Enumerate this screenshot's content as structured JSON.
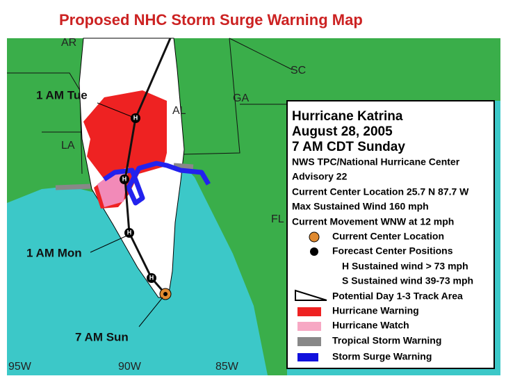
{
  "title": "Proposed NHC Storm Surge Warning Map",
  "state_labels": [
    "AR",
    "SC",
    "GA",
    "AL",
    "LA",
    "FL"
  ],
  "annotations": [
    "1 AM Tue",
    "1 AM Mon",
    "7 AM Sun"
  ],
  "storm_markers": [
    "H",
    "H",
    "H",
    "H"
  ],
  "longitude_labels": [
    "95W",
    "90W",
    "85W"
  ],
  "legend": {
    "heading": [
      "Hurricane Katrina",
      "August 28, 2005",
      "7 AM CDT Sunday"
    ],
    "details": [
      "NWS TPC/National Hurricane Center",
      "Advisory 22",
      "Current Center Location 25.7 N  87.7 W",
      "Max Sustained Wind  160 mph",
      "Current Movement WNW at  12 mph"
    ],
    "items": [
      "Current Center Location",
      "Forecast Center Positions",
      "H  Sustained wind > 73 mph",
      "S  Sustained wind 39-73 mph",
      "Potential Day 1-3 Track Area",
      "Hurricane Warning",
      "Hurricane Watch",
      "Tropical Storm Warning",
      "Storm Surge Warning"
    ]
  }
}
